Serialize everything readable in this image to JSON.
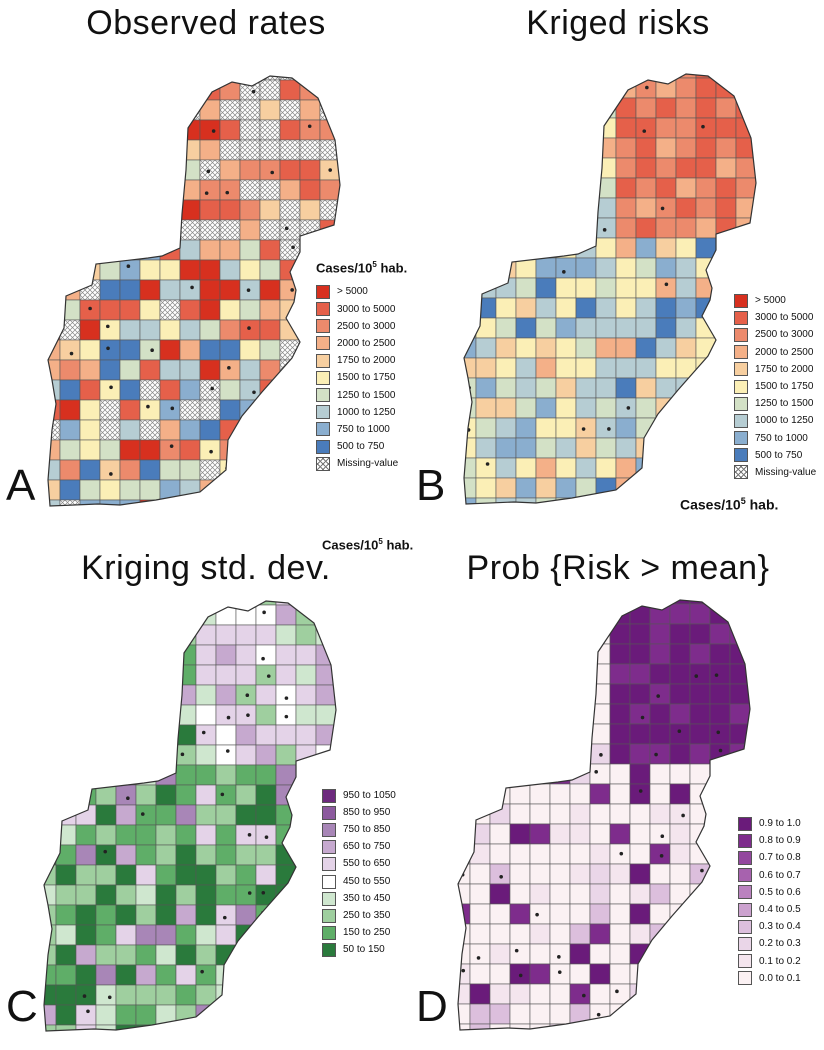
{
  "figure": {
    "panels": [
      {
        "id": "A",
        "title": "Observed rates",
        "letter": "A",
        "legend_title": "Cases/10",
        "legend_title_sup": "5",
        "legend_title_tail": " hab.",
        "legend_title_position": "above",
        "classes": [
          "> 5000",
          "3000 to 5000",
          "2500 to 3000",
          "2000 to 2500",
          "1750 to 2000",
          "1500 to 1750",
          "1250 to 1500",
          "1000 to 1250",
          "750 to 1000",
          "500 to 750",
          "Missing-value"
        ],
        "colors": [
          "#d7301f",
          "#e5604a",
          "#ec8a6c",
          "#f4b088",
          "#f7cfa0",
          "#fbefb6",
          "#d3e1c6",
          "#b6cdd3",
          "#8aaecf",
          "#4a7cbb",
          "hatch"
        ],
        "south_mix": [
          0,
          0,
          0,
          1,
          1,
          2,
          3,
          3,
          4,
          5,
          5,
          6,
          6,
          7,
          7,
          7,
          8,
          8,
          9,
          9,
          9,
          10,
          10
        ],
        "north_mix": [
          0,
          1,
          1,
          2,
          2,
          2,
          3,
          3,
          4,
          10,
          10,
          10,
          10,
          10,
          10,
          10,
          10
        ]
      },
      {
        "id": "B",
        "title": "Kriged risks",
        "letter": "B",
        "legend_title": "Cases/10",
        "legend_title_sup": "5",
        "legend_title_tail": " hab.",
        "legend_title_position": "below",
        "classes": [
          "> 5000",
          "3000 to 5000",
          "2500 to 3000",
          "2000 to 2500",
          "1750 to 2000",
          "1500 to 1750",
          "1250 to 1500",
          "1000 to 1250",
          "750 to 1000",
          "500 to 750",
          "Missing-value"
        ],
        "colors": [
          "#d7301f",
          "#e5604a",
          "#ec8a6c",
          "#f4b088",
          "#f7cfa0",
          "#fbefb6",
          "#d3e1c6",
          "#b6cdd3",
          "#8aaecf",
          "#4a7cbb",
          "hatch"
        ],
        "south_mix": [
          3,
          4,
          4,
          5,
          5,
          5,
          5,
          6,
          6,
          6,
          7,
          7,
          7,
          8,
          8,
          9
        ],
        "north_mix": [
          1,
          1,
          1,
          1,
          2,
          2,
          2,
          3
        ]
      },
      {
        "id": "C",
        "title": "Kriging std. dev.",
        "letter": "C",
        "legend_title": "Cases/10",
        "legend_title_sup": "5",
        "legend_title_tail": " hab.",
        "legend_title_position": "above",
        "classes": [
          "950 to 1050",
          "850 to 950",
          "750 to 850",
          "650 to 750",
          "550 to 650",
          "450 to 550",
          "350 to 450",
          "250 to 350",
          "150 to 250",
          "50 to 150"
        ],
        "colors": [
          "#6d2a7e",
          "#8c5a9e",
          "#a886b7",
          "#c6a9cf",
          "#e4d3e8",
          "#ffffff",
          "#cfe7cf",
          "#9fcf9f",
          "#5fae68",
          "#2a7a3c"
        ],
        "south_mix": [
          2,
          3,
          4,
          6,
          7,
          7,
          7,
          8,
          8,
          8,
          8,
          9,
          9,
          9,
          9
        ],
        "north_mix": [
          3,
          3,
          4,
          4,
          4,
          4,
          5,
          6,
          7
        ]
      },
      {
        "id": "D",
        "title": "Prob {Risk > mean}",
        "letter": "D",
        "legend_title": "",
        "legend_title_sup": "",
        "legend_title_tail": "",
        "legend_title_position": "none",
        "classes": [
          "0.9 to 1.0",
          "0.8 to 0.9",
          "0.7 to 0.8",
          "0.6 to 0.7",
          "0.5 to 0.6",
          "0.4 to 0.5",
          "0.3 to 0.4",
          "0.2 to 0.3",
          "0.1 to 0.2",
          "0.0 to 0.1"
        ],
        "colors": [
          "#6a1b7a",
          "#7e2c8c",
          "#93479e",
          "#a762ae",
          "#ba82bf",
          "#cca2cf",
          "#dcbfdd",
          "#ead6e8",
          "#f4e5ee",
          "#fbf1f3"
        ],
        "south_mix": [
          0,
          1,
          6,
          7,
          8,
          8,
          9,
          9,
          9,
          9,
          9,
          9,
          9
        ],
        "north_mix": [
          0,
          0,
          0,
          1,
          1,
          0,
          0
        ]
      }
    ]
  }
}
